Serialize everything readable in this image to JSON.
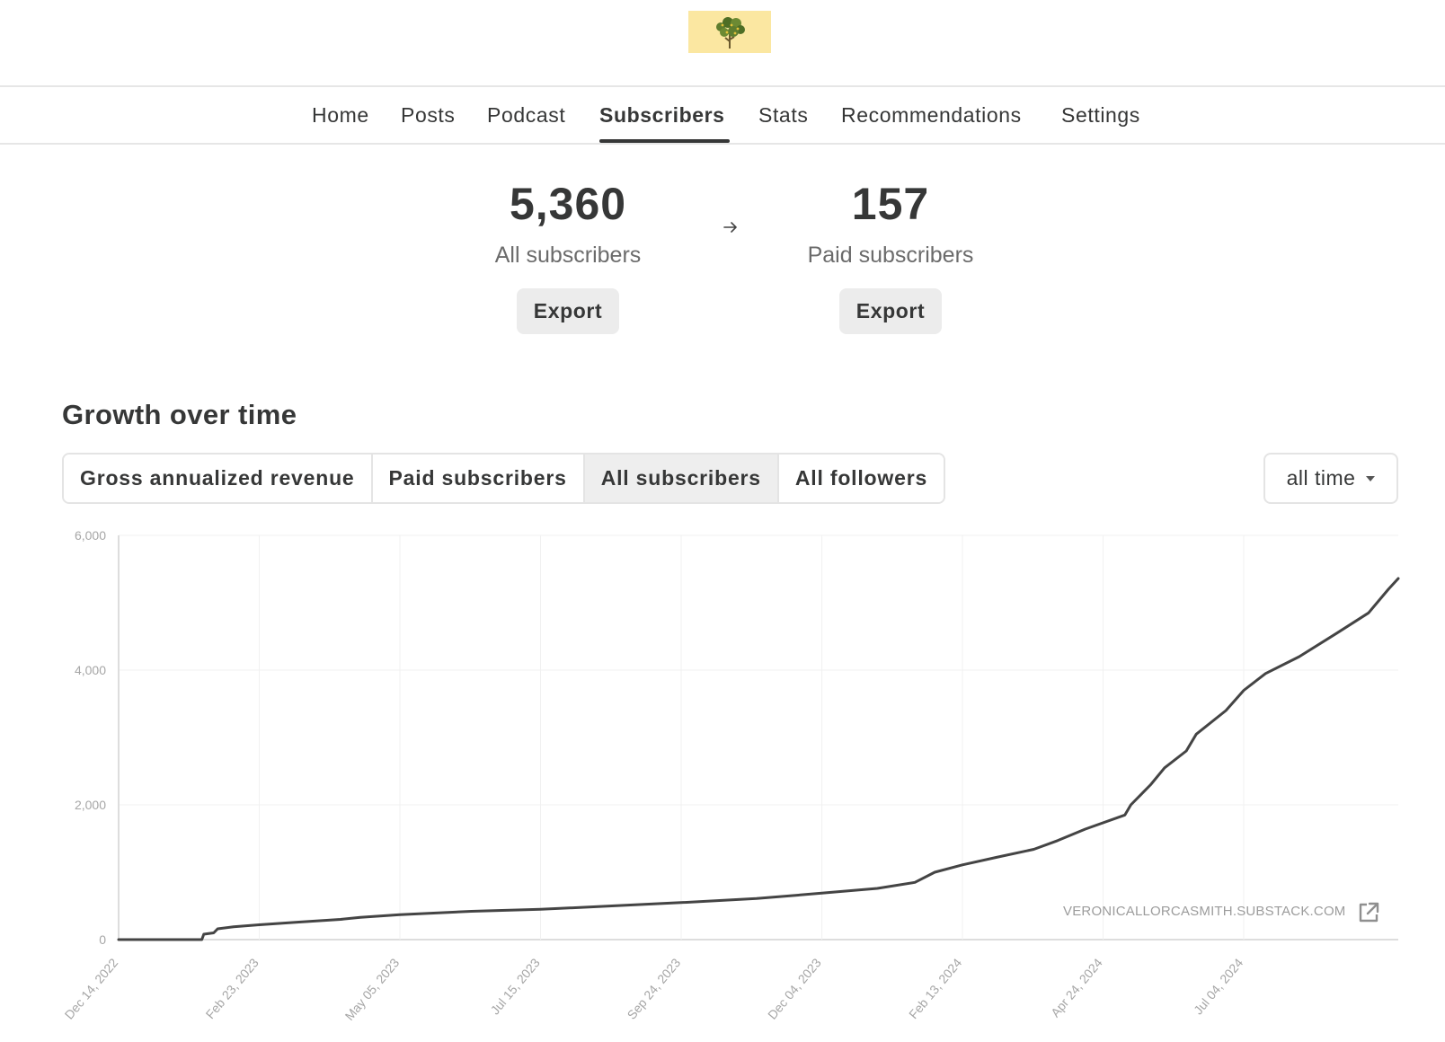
{
  "nav": {
    "items": [
      {
        "label": "Home",
        "active": false
      },
      {
        "label": "Posts",
        "active": false
      },
      {
        "label": "Podcast",
        "active": false
      },
      {
        "label": "Subscribers",
        "active": true
      },
      {
        "label": "Stats",
        "active": false
      },
      {
        "label": "Recommendations",
        "active": false
      },
      {
        "label": "Settings",
        "active": false
      }
    ]
  },
  "stats": {
    "all": {
      "value": "5,360",
      "label": "All subscribers",
      "export_label": "Export"
    },
    "paid": {
      "value": "157",
      "label": "Paid subscribers",
      "export_label": "Export"
    }
  },
  "growth": {
    "title": "Growth over time",
    "tabs": [
      {
        "label": "Gross annualized revenue",
        "selected": false
      },
      {
        "label": "Paid subscribers",
        "selected": false
      },
      {
        "label": "All subscribers",
        "selected": true
      },
      {
        "label": "All followers",
        "selected": false
      }
    ],
    "range": "all time"
  },
  "watermark": "VERONICALLORCASMITH.SUBSTACK.COM",
  "icons": [
    "tree-logo-icon",
    "arrow-right-icon",
    "chevron-down-icon",
    "external-link-icon"
  ],
  "colors": {
    "logo_bg": "#fbe7a1",
    "text": "#363737",
    "line": "#444444"
  },
  "chart_data": {
    "type": "line",
    "title": "",
    "xlabel": "",
    "ylabel": "",
    "ylim": [
      0,
      6000
    ],
    "yticks": [
      "0",
      "2,000",
      "4,000",
      "6,000"
    ],
    "x_ticks": [
      "Dec 14, 2022",
      "Feb 23, 2023",
      "May 05, 2023",
      "Jul 15, 2023",
      "Sep 24, 2023",
      "Dec 04, 2023",
      "Feb 13, 2024",
      "Apr 24, 2024",
      "Jul 04, 2024"
    ],
    "grid": true,
    "series": [
      {
        "values": [
          [
            "Dec 14, 2022",
            0
          ],
          [
            "Jan 25, 2023",
            0
          ],
          [
            "Jan 26, 2023",
            80
          ],
          [
            "Jan 31, 2023",
            100
          ],
          [
            "Feb 02, 2023",
            160
          ],
          [
            "Feb 10, 2023",
            190
          ],
          [
            "Feb 23, 2023",
            220
          ],
          [
            "Mar 15, 2023",
            260
          ],
          [
            "Apr 05, 2023",
            300
          ],
          [
            "Apr 15, 2023",
            330
          ],
          [
            "May 05, 2023",
            370
          ],
          [
            "Jun 10, 2023",
            420
          ],
          [
            "Jul 15, 2023",
            450
          ],
          [
            "Aug 20, 2023",
            500
          ],
          [
            "Sep 24, 2023",
            550
          ],
          [
            "Nov 01, 2023",
            610
          ],
          [
            "Dec 04, 2023",
            690
          ],
          [
            "Jan 01, 2024",
            760
          ],
          [
            "Jan 20, 2024",
            850
          ],
          [
            "Jan 30, 2024",
            1000
          ],
          [
            "Feb 13, 2024",
            1110
          ],
          [
            "Mar 01, 2024",
            1220
          ],
          [
            "Mar 20, 2024",
            1340
          ],
          [
            "Apr 01, 2024",
            1470
          ],
          [
            "Apr 15, 2024",
            1640
          ],
          [
            "May 05, 2024",
            1850
          ],
          [
            "May 08, 2024",
            2000
          ],
          [
            "May 18, 2024",
            2300
          ],
          [
            "May 25, 2024",
            2550
          ],
          [
            "Jun 05, 2024",
            2800
          ],
          [
            "Jun 10, 2024",
            3050
          ],
          [
            "Jun 25, 2024",
            3400
          ],
          [
            "Jul 04, 2024",
            3700
          ],
          [
            "Jul 15, 2024",
            3950
          ],
          [
            "Aug 01, 2024",
            4200
          ],
          [
            "Aug 20, 2024",
            4550
          ],
          [
            "Sep 05, 2024",
            4850
          ],
          [
            "Sep 15, 2024",
            5200
          ],
          [
            "Sep 20, 2024",
            5360
          ]
        ]
      }
    ]
  }
}
